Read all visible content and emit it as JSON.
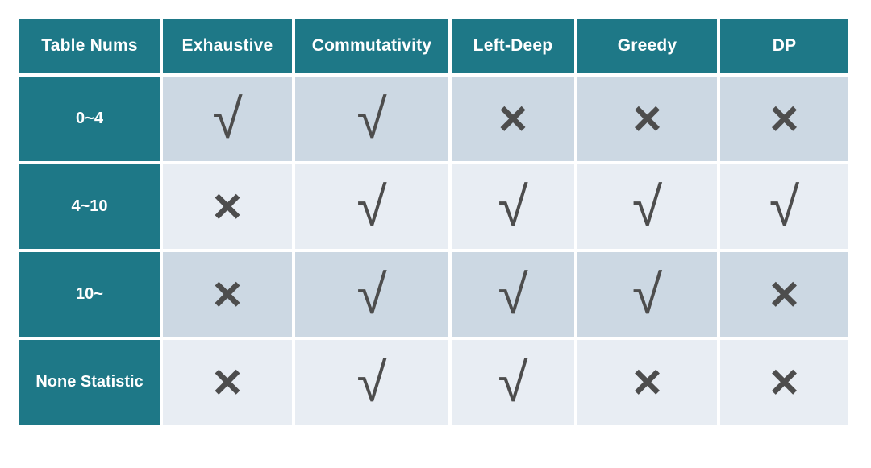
{
  "colors": {
    "page_bg": "#ffffff",
    "header_bg": "#1e7887",
    "header_text": "#ffffff",
    "row_dark_bg": "#ccd8e3",
    "row_light_bg": "#e8edf3",
    "mark": "#4d4d4d"
  },
  "symbols": {
    "check": "√",
    "cross": "×"
  },
  "chart_data": {
    "type": "table",
    "columns": [
      "Table Nums",
      "Exhaustive",
      "Commutativity",
      "Left-Deep",
      "Greedy",
      "DP"
    ],
    "rows": [
      {
        "label": "0~4",
        "values": [
          "√",
          "√",
          "×",
          "×",
          "×"
        ]
      },
      {
        "label": "4~10",
        "values": [
          "×",
          "√",
          "√",
          "√",
          "√"
        ]
      },
      {
        "label": "10~",
        "values": [
          "×",
          "√",
          "√",
          "√",
          "×"
        ]
      },
      {
        "label": "None Statistic",
        "values": [
          "×",
          "√",
          "√",
          "×",
          "×"
        ]
      }
    ]
  }
}
